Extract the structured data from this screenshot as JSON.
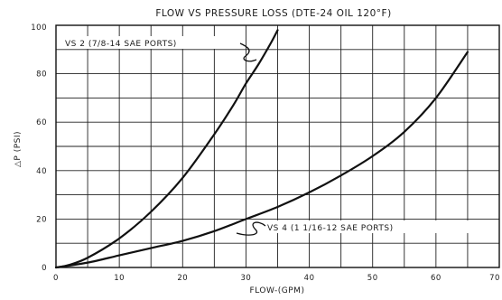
{
  "chart_data": {
    "type": "line",
    "title": "FLOW VS PRESSURE LOSS (DTE-24 OIL 120°F)",
    "xlabel": "FLOW-(GPM)",
    "ylabel": "△P (PSI)",
    "xlim": [
      0,
      70
    ],
    "ylim": [
      0,
      100
    ],
    "x_ticks": [
      "0",
      "10",
      "20",
      "30",
      "40",
      "50",
      "60",
      "70"
    ],
    "y_ticks": [
      "0",
      "20",
      "40",
      "60",
      "80",
      "100"
    ],
    "x_grid_step": 5,
    "y_grid_step": 10,
    "grid": true,
    "series": [
      {
        "name": "VS 2 (7/8-14 SAE PORTS)",
        "label": "VS 2 (7/8-14 SAE PORTS)",
        "x": [
          0,
          2,
          5,
          10,
          15,
          20,
          25,
          28,
          30,
          32,
          34,
          35
        ],
        "y": [
          0,
          1,
          4,
          12,
          23,
          37,
          55,
          67,
          76,
          84,
          93,
          98
        ]
      },
      {
        "name": "VS 4 (1 1/16-12 SAE PORTS)",
        "label": "VS 4 (1 1/16-12 SAE PORTS)",
        "x": [
          0,
          5,
          10,
          15,
          20,
          25,
          30,
          35,
          40,
          45,
          50,
          55,
          60,
          65
        ],
        "y": [
          0,
          2,
          5,
          8,
          11,
          15,
          20,
          25,
          31,
          38,
          46,
          56,
          70,
          89
        ]
      }
    ]
  }
}
